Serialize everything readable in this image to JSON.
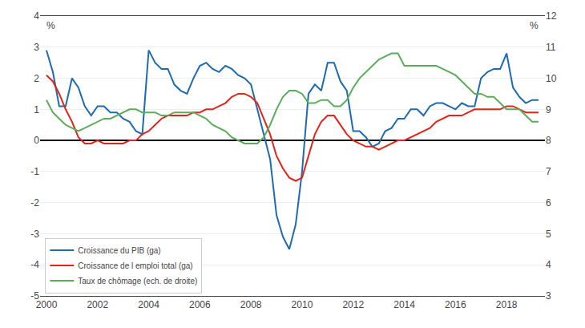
{
  "chart_data": {
    "type": "line",
    "x": [
      2000.0,
      2000.25,
      2000.5,
      2000.75,
      2001.0,
      2001.25,
      2001.5,
      2001.75,
      2002.0,
      2002.25,
      2002.5,
      2002.75,
      2003.0,
      2003.25,
      2003.5,
      2003.75,
      2004.0,
      2004.25,
      2004.5,
      2004.75,
      2005.0,
      2005.25,
      2005.5,
      2005.75,
      2006.0,
      2006.25,
      2006.5,
      2006.75,
      2007.0,
      2007.25,
      2007.5,
      2007.75,
      2008.0,
      2008.25,
      2008.5,
      2008.75,
      2009.0,
      2009.25,
      2009.5,
      2009.75,
      2010.0,
      2010.25,
      2010.5,
      2010.75,
      2011.0,
      2011.25,
      2011.5,
      2011.75,
      2012.0,
      2012.25,
      2012.5,
      2012.75,
      2013.0,
      2013.25,
      2013.5,
      2013.75,
      2014.0,
      2014.25,
      2014.5,
      2014.75,
      2015.0,
      2015.25,
      2015.5,
      2015.75,
      2016.0,
      2016.25,
      2016.5,
      2016.75,
      2017.0,
      2017.25,
      2017.5,
      2017.75,
      2018.0,
      2018.25,
      2018.5,
      2018.75,
      2019.0,
      2019.25
    ],
    "series": [
      {
        "name": "Croissance du PIB (ga)",
        "color": "#1F6BB0",
        "values": [
          2.9,
          2.2,
          1.1,
          1.1,
          2.0,
          1.7,
          1.1,
          0.8,
          1.1,
          1.1,
          0.9,
          0.9,
          0.7,
          0.6,
          0.3,
          0.2,
          2.9,
          2.5,
          2.3,
          2.3,
          1.8,
          1.6,
          1.5,
          2.0,
          2.4,
          2.5,
          2.3,
          2.2,
          2.4,
          2.3,
          2.1,
          2.0,
          1.8,
          1.0,
          0.2,
          -0.6,
          -2.4,
          -3.1,
          -3.5,
          -2.7,
          -1.0,
          1.5,
          1.8,
          1.6,
          2.5,
          2.5,
          1.9,
          1.6,
          0.3,
          0.3,
          0.1,
          -0.2,
          -0.1,
          0.3,
          0.4,
          0.7,
          0.7,
          1.0,
          1.0,
          0.8,
          1.1,
          1.2,
          1.2,
          1.1,
          1.0,
          1.2,
          1.1,
          1.1,
          2.0,
          2.2,
          2.3,
          2.3,
          2.8,
          1.7,
          1.4,
          1.2,
          1.3,
          1.3
        ]
      },
      {
        "name": "Croissance de l emploi total (ga)",
        "color": "#E0251B",
        "values": [
          2.1,
          1.9,
          1.5,
          1.0,
          0.6,
          0.1,
          -0.1,
          -0.1,
          0.0,
          -0.1,
          -0.1,
          -0.1,
          -0.1,
          0.0,
          0.0,
          0.2,
          0.3,
          0.5,
          0.7,
          0.8,
          0.8,
          0.8,
          0.8,
          0.9,
          0.9,
          1.0,
          1.0,
          1.1,
          1.2,
          1.4,
          1.5,
          1.5,
          1.4,
          1.2,
          0.7,
          0.2,
          -0.5,
          -0.9,
          -1.2,
          -1.3,
          -1.2,
          -0.5,
          0.2,
          0.6,
          0.8,
          0.8,
          0.5,
          0.2,
          0.0,
          -0.1,
          -0.2,
          -0.2,
          -0.3,
          -0.2,
          -0.1,
          0.0,
          0.0,
          0.1,
          0.2,
          0.3,
          0.4,
          0.6,
          0.7,
          0.8,
          0.8,
          0.8,
          0.9,
          1.0,
          1.0,
          1.0,
          1.0,
          1.0,
          1.1,
          1.1,
          1.0,
          0.9,
          0.9,
          0.9
        ]
      },
      {
        "name": "Taux de chômage (ech. de droite)",
        "color": "#5BAD5B",
        "axis": "y2",
        "values": [
          9.3,
          8.9,
          8.7,
          8.5,
          8.4,
          8.3,
          8.4,
          8.5,
          8.6,
          8.7,
          8.7,
          8.8,
          8.9,
          9.0,
          9.0,
          8.9,
          8.9,
          8.9,
          8.8,
          8.8,
          8.9,
          8.9,
          8.9,
          8.9,
          8.8,
          8.7,
          8.5,
          8.4,
          8.3,
          8.1,
          8.0,
          7.9,
          7.9,
          7.9,
          8.1,
          8.5,
          9.0,
          9.4,
          9.6,
          9.6,
          9.5,
          9.2,
          9.2,
          9.3,
          9.3,
          9.1,
          9.1,
          9.3,
          9.7,
          10.0,
          10.2,
          10.4,
          10.6,
          10.7,
          10.8,
          10.8,
          10.4,
          10.4,
          10.4,
          10.4,
          10.4,
          10.4,
          10.3,
          10.2,
          10.1,
          9.9,
          9.7,
          9.5,
          9.5,
          9.4,
          9.4,
          9.2,
          9.0,
          9.0,
          9.0,
          8.8,
          8.6,
          8.6
        ]
      }
    ],
    "xlim": [
      1999.75,
      2019.5
    ],
    "xticks": [
      2000,
      2002,
      2004,
      2006,
      2008,
      2010,
      2012,
      2014,
      2016,
      2018
    ],
    "ylim": [
      -5,
      4
    ],
    "yticks": [
      -5,
      -4,
      -3,
      -2,
      -1,
      0,
      1,
      2,
      3,
      4
    ],
    "y2lim": [
      3,
      12
    ],
    "y2ticks": [
      3,
      4,
      5,
      6,
      7,
      8,
      9,
      10,
      11,
      12
    ],
    "annotations": [
      "%",
      "%"
    ],
    "grid": "y",
    "legend": "lower left"
  }
}
